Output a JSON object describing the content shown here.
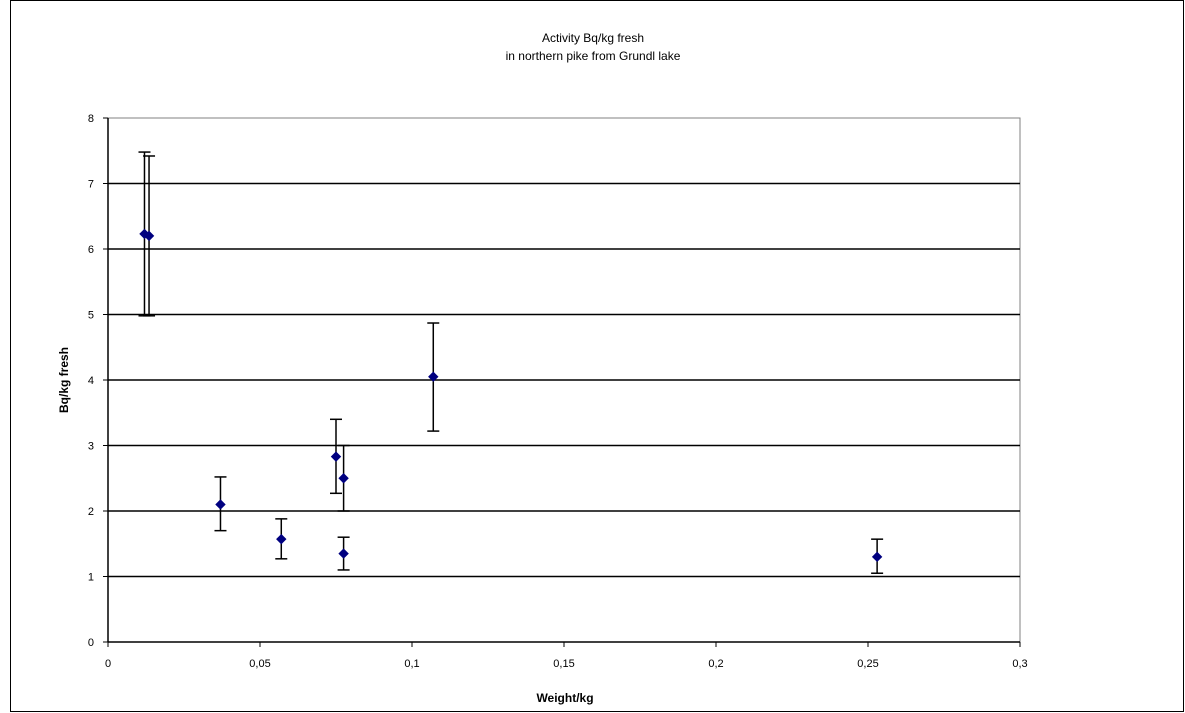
{
  "chart_data": {
    "type": "scatter",
    "title": "Activity Bq/kg fresh",
    "subtitle": "in northern pike from Grundl lake",
    "xlabel": "Weight/kg",
    "ylabel": "Bq/kg fresh",
    "xlim": [
      0,
      0.3
    ],
    "ylim": [
      0,
      8
    ],
    "x_ticks": [
      "0",
      "0,05",
      "0,1",
      "0,15",
      "0,2",
      "0,25",
      "0,3"
    ],
    "y_ticks": [
      "0",
      "1",
      "2",
      "3",
      "4",
      "5",
      "6",
      "7",
      "8"
    ],
    "grid": "horizontal",
    "legend": "none",
    "marker_color": "#000080",
    "series": [
      {
        "points": [
          {
            "x": 0.012,
            "y": 6.23,
            "ylow": 4.98,
            "yhigh": 7.48
          },
          {
            "x": 0.0135,
            "y": 6.2,
            "ylow": 4.98,
            "yhigh": 7.42
          },
          {
            "x": 0.037,
            "y": 2.1,
            "ylow": 1.7,
            "yhigh": 2.52
          },
          {
            "x": 0.057,
            "y": 1.57,
            "ylow": 1.27,
            "yhigh": 1.88
          },
          {
            "x": 0.075,
            "y": 2.83,
            "ylow": 2.27,
            "yhigh": 3.4
          },
          {
            "x": 0.0775,
            "y": 2.5,
            "ylow": 2.0,
            "yhigh": 3.0
          },
          {
            "x": 0.0775,
            "y": 1.35,
            "ylow": 1.1,
            "yhigh": 1.6
          },
          {
            "x": 0.107,
            "y": 4.05,
            "ylow": 3.22,
            "yhigh": 4.87
          },
          {
            "x": 0.253,
            "y": 1.3,
            "ylow": 1.05,
            "yhigh": 1.57
          }
        ]
      }
    ]
  }
}
